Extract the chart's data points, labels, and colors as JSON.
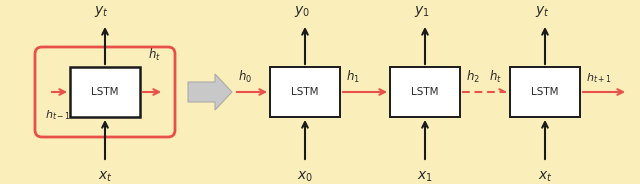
{
  "bg_color": "#faeebb",
  "box_color": "#ffffff",
  "box_edge_color": "#1a1a1a",
  "red_color": "#e8504a",
  "black_color": "#1a1a1a",
  "gray_color": "#b8b8b8",
  "text_color": "#2a2a2a",
  "lstm_label": "LSTM",
  "fig_width": 6.4,
  "fig_height": 1.84,
  "background_color": "#faeebb",
  "outer_edge_color": "#e8d898"
}
